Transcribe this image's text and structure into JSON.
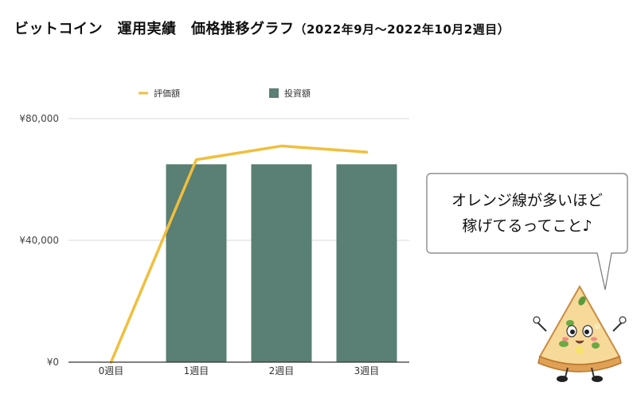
{
  "title": {
    "main": "ビットコイン　運用実績　価格推移グラフ",
    "sub": "（2022年9月〜2022年10月2週目）"
  },
  "chart_data": {
    "type": "bar+line",
    "categories": [
      "0週目",
      "1週目",
      "2週目",
      "3週目"
    ],
    "series": [
      {
        "name": "評価額",
        "kind": "line",
        "color": "#f0bf3c",
        "values": [
          0,
          66500,
          71000,
          69000
        ]
      },
      {
        "name": "投資額",
        "kind": "bar",
        "color": "#5a7f74",
        "values": [
          0,
          65000,
          65000,
          65000
        ]
      }
    ],
    "yticks": [
      {
        "value": 0,
        "label": "¥0"
      },
      {
        "value": 40000,
        "label": "¥40,000"
      },
      {
        "value": 80000,
        "label": "¥80,000"
      }
    ],
    "ylim": [
      0,
      80000
    ],
    "grid": true,
    "legend_position": "top"
  },
  "bubble": {
    "line1": "オレンジ線が多いほど",
    "line2": "稼げてるってこと♪"
  },
  "mascot": {
    "icon": "pizza-mascot-icon"
  }
}
